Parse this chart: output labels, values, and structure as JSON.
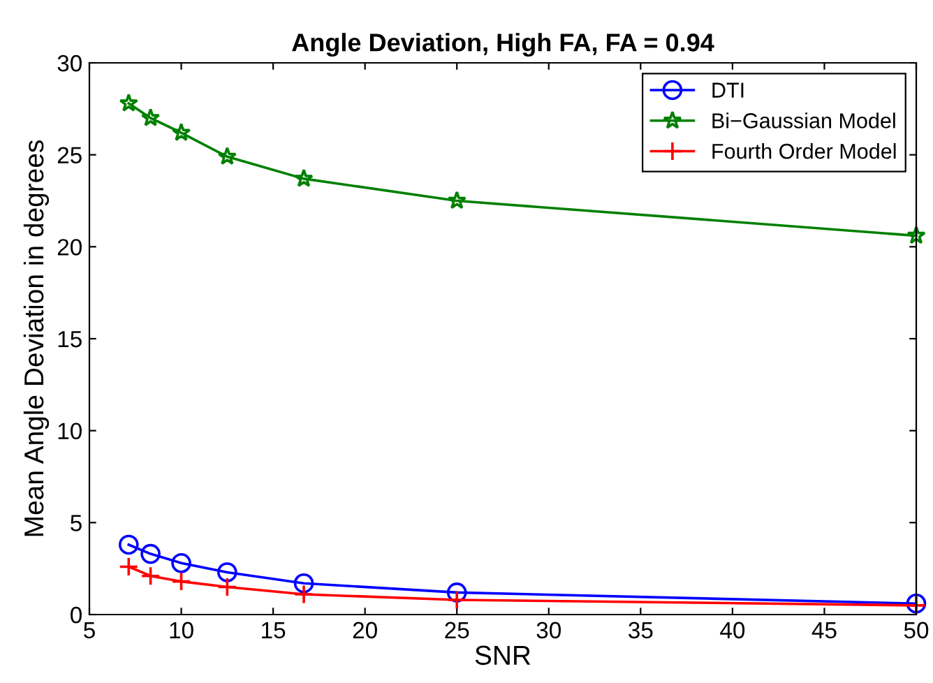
{
  "chart_data": {
    "type": "line",
    "title": "Angle Deviation, High FA, FA = 0.94",
    "xlabel": "SNR",
    "ylabel": "Mean Angle Deviation in degrees",
    "x": [
      7.14,
      8.33,
      10,
      12.5,
      16.67,
      25,
      50
    ],
    "series": [
      {
        "name": "DTI",
        "color": "#0000ff",
        "marker": "circle",
        "values": [
          3.8,
          3.3,
          2.8,
          2.3,
          1.7,
          1.2,
          0.6
        ]
      },
      {
        "name": "Bi−Gaussian Model",
        "color": "#008000",
        "marker": "star",
        "values": [
          27.8,
          27.0,
          26.2,
          24.9,
          23.7,
          22.5,
          20.6
        ]
      },
      {
        "name": "Fourth Order Model",
        "color": "#ff0000",
        "marker": "cross",
        "values": [
          2.6,
          2.1,
          1.8,
          1.5,
          1.1,
          0.8,
          0.5
        ]
      }
    ],
    "xlim": [
      5,
      50
    ],
    "xticks": [
      5,
      10,
      15,
      20,
      25,
      30,
      35,
      40,
      45,
      50
    ],
    "ylim": [
      0,
      30
    ],
    "yticks": [
      0,
      5,
      10,
      15,
      20,
      25,
      30
    ],
    "grid": false,
    "legend": "top right",
    "line_style": "solid"
  }
}
